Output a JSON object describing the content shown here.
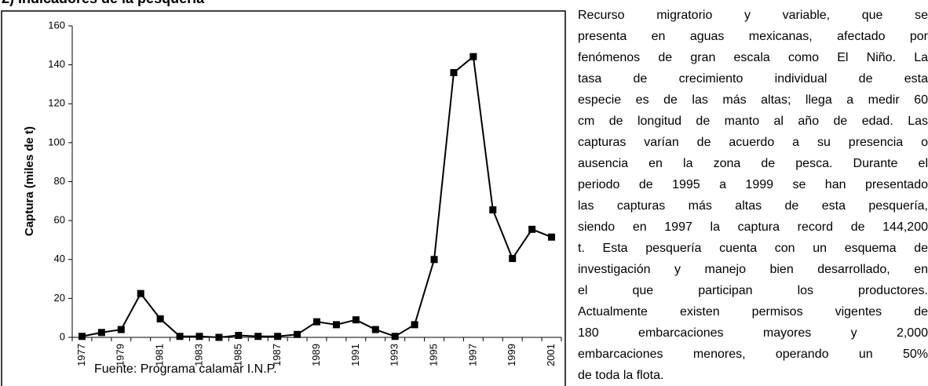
{
  "heading": "2) Indicadores de la pesquería",
  "chart_data": {
    "type": "line",
    "ylabel": "Captura (miles de t)",
    "categories": [
      "1977",
      null,
      "1979",
      null,
      "1981",
      null,
      "1983",
      null,
      "1985",
      null,
      "1987",
      null,
      "1989",
      null,
      "1991",
      null,
      "1993",
      null,
      "1995",
      null,
      "1997",
      null,
      "1999",
      null,
      "2001"
    ],
    "series": [
      {
        "name": null,
        "color": "#000000",
        "values": [
          0.5,
          2.5,
          4,
          22.5,
          9.5,
          0.5,
          0.5,
          0,
          1,
          0.5,
          0.5,
          1.5,
          8,
          6.5,
          9,
          4,
          0.5,
          6.5,
          40,
          136,
          144.2,
          65.5,
          40.5,
          55.5,
          51.5
        ]
      }
    ],
    "ylim": [
      0,
      160
    ],
    "yticks": [
      0,
      20,
      40,
      60,
      80,
      100,
      120,
      140,
      160
    ],
    "grid": false,
    "source": "Fuente: Programa calamar I.N.P."
  },
  "paragraph": {
    "lines": [
      "Recurso migratorio y variable, que se",
      "presenta en aguas mexicanas, afectado por",
      "fenómenos de gran escala como El Niño. La",
      "tasa de crecimiento individual de esta",
      "especie es de las más altas; llega a medir 60",
      "cm de longitud de manto al año de edad. Las",
      "capturas varían de acuerdo a su presencia o",
      "ausencia en la zona de pesca. Durante el",
      "periodo de 1995 a 1999 se han presentado",
      "las capturas más altas de esta pesquería,",
      "siendo en 1997 la captura record de 144,200",
      "t. Esta pesquería cuenta con un esquema de",
      "investigación y manejo bien desarrollado, en",
      "el que participan los productores.",
      "Actualmente existen permisos vigentes de",
      "180 embarcaciones mayores y 2,000",
      "embarcaciones menores, operando un 50%",
      "de toda la flota."
    ]
  }
}
